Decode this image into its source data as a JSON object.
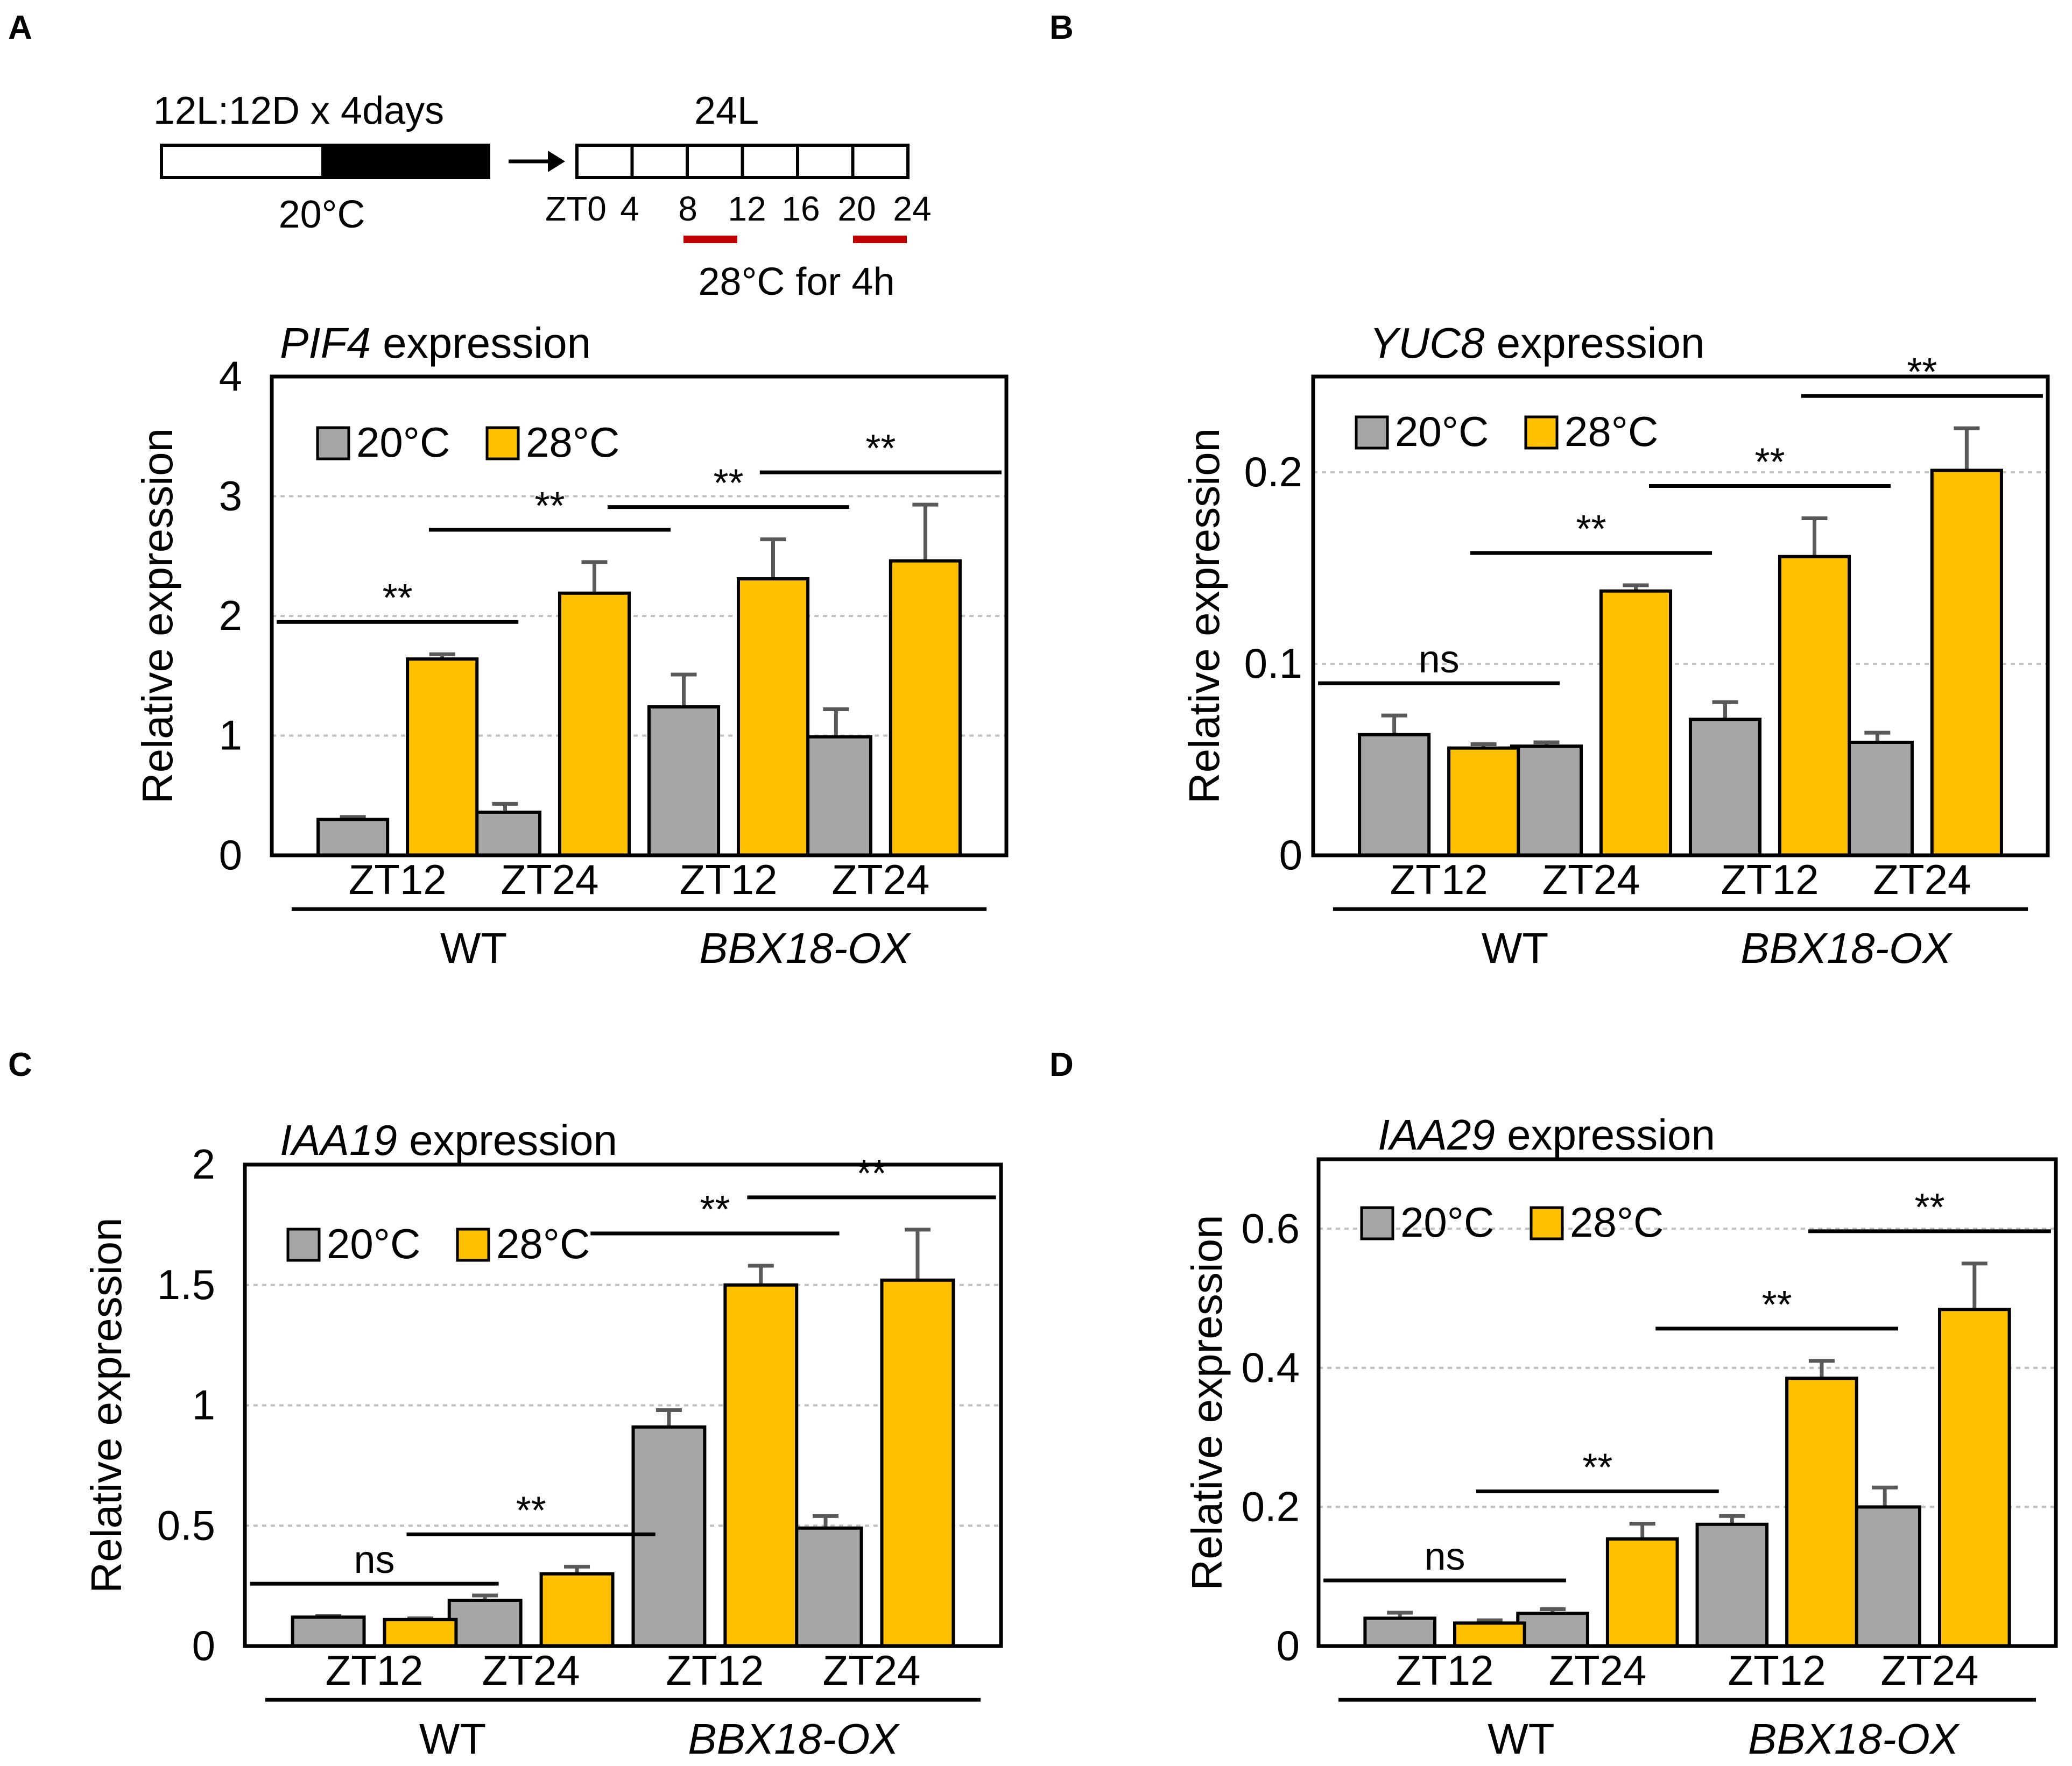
{
  "colors": {
    "c20": "#A6A6A6",
    "c28": "#FFC000",
    "err": "#595959",
    "grid": "#BFBFBF",
    "bar_red": "#C00000"
  },
  "schedule": {
    "left_label": "12L:12D x 4days",
    "left_temp": "20°C",
    "right_label": "24L",
    "ticks": [
      "ZT0",
      "4",
      "8",
      "12",
      "16",
      "20",
      "24"
    ],
    "warm_label": "28°C for 4h"
  },
  "chart_data": [
    {
      "panel": "A",
      "type": "bar",
      "gene": "PIF4",
      "title_suffix": " expression",
      "ylabel": "Relative expression",
      "ylim": [
        0,
        4
      ],
      "yticks": [
        0,
        1,
        2,
        3,
        4
      ],
      "ytick_labels": [
        "0",
        "1",
        "2",
        "3",
        "4"
      ],
      "legend": [
        "20°C",
        "28°C"
      ],
      "categories": [
        "ZT12",
        "ZT24",
        "ZT12",
        "ZT24"
      ],
      "groups": [
        {
          "label": "WT",
          "italic": false
        },
        {
          "label": "BBX18-OX",
          "italic": true
        }
      ],
      "series": [
        {
          "name": "20°C",
          "values": [
            0.3,
            0.36,
            1.24,
            0.99
          ],
          "errors": [
            0.02,
            0.07,
            0.27,
            0.23
          ]
        },
        {
          "name": "28°C",
          "values": [
            1.64,
            2.19,
            2.31,
            2.46
          ],
          "errors": [
            0.04,
            0.26,
            0.33,
            0.47
          ]
        }
      ],
      "significance": [
        "**",
        "**",
        "**",
        "**"
      ]
    },
    {
      "panel": "B",
      "type": "bar",
      "gene": "YUC8",
      "title_suffix": " expression",
      "ylabel": "Relative expression",
      "ylim": [
        0,
        0.25
      ],
      "yticks": [
        0,
        0.1,
        0.2
      ],
      "ytick_labels": [
        "0",
        "0.1",
        "0.2"
      ],
      "legend": [
        "20°C",
        "28°C"
      ],
      "categories": [
        "ZT12",
        "ZT24",
        "ZT12",
        "ZT24"
      ],
      "groups": [
        {
          "label": "WT",
          "italic": false
        },
        {
          "label": "BBX18-OX",
          "italic": true
        }
      ],
      "series": [
        {
          "name": "20°C",
          "values": [
            0.063,
            0.057,
            0.071,
            0.059
          ],
          "errors": [
            0.01,
            0.002,
            0.009,
            0.005
          ]
        },
        {
          "name": "28°C",
          "values": [
            0.056,
            0.138,
            0.156,
            0.201
          ],
          "errors": [
            0.002,
            0.003,
            0.02,
            0.022
          ]
        }
      ],
      "significance": [
        "ns",
        "**",
        "**",
        "**"
      ]
    },
    {
      "panel": "C",
      "type": "bar",
      "gene": "IAA19",
      "title_suffix": " expression",
      "ylabel": "Relative expression",
      "ylim": [
        0,
        2
      ],
      "yticks": [
        0,
        0.5,
        1,
        1.5,
        2
      ],
      "ytick_labels": [
        "0",
        "0.5",
        "1",
        "1.5",
        "2"
      ],
      "legend": [
        "20°C",
        "28°C"
      ],
      "categories": [
        "ZT12",
        "ZT24",
        "ZT12",
        "ZT24"
      ],
      "groups": [
        {
          "label": "WT",
          "italic": false
        },
        {
          "label": "BBX18-OX",
          "italic": true
        }
      ],
      "series": [
        {
          "name": "20°C",
          "values": [
            0.12,
            0.19,
            0.91,
            0.49
          ],
          "errors": [
            0.005,
            0.02,
            0.07,
            0.05
          ]
        },
        {
          "name": "28°C",
          "values": [
            0.11,
            0.3,
            1.5,
            1.52
          ],
          "errors": [
            0.005,
            0.03,
            0.08,
            0.21
          ]
        }
      ],
      "significance": [
        "ns",
        "**",
        "**",
        "**"
      ]
    },
    {
      "panel": "D",
      "type": "bar",
      "gene": "IAA29",
      "title_suffix": " expression",
      "ylabel": "Relative expression",
      "ylim": [
        0,
        0.7
      ],
      "yticks": [
        0,
        0.2,
        0.4,
        0.6
      ],
      "ytick_labels": [
        "0",
        "0.2",
        "0.4",
        "0.6"
      ],
      "legend": [
        "20°C",
        "28°C"
      ],
      "categories": [
        "ZT12",
        "ZT24",
        "ZT12",
        "ZT24"
      ],
      "groups": [
        {
          "label": "WT",
          "italic": false
        },
        {
          "label": "BBX18-OX",
          "italic": true
        }
      ],
      "series": [
        {
          "name": "20°C",
          "values": [
            0.04,
            0.047,
            0.175,
            0.2
          ],
          "errors": [
            0.008,
            0.006,
            0.012,
            0.028
          ]
        },
        {
          "name": "28°C",
          "values": [
            0.033,
            0.154,
            0.385,
            0.484
          ],
          "errors": [
            0.004,
            0.022,
            0.025,
            0.066
          ]
        }
      ],
      "significance": [
        "ns",
        "**",
        "**",
        "**"
      ]
    }
  ]
}
